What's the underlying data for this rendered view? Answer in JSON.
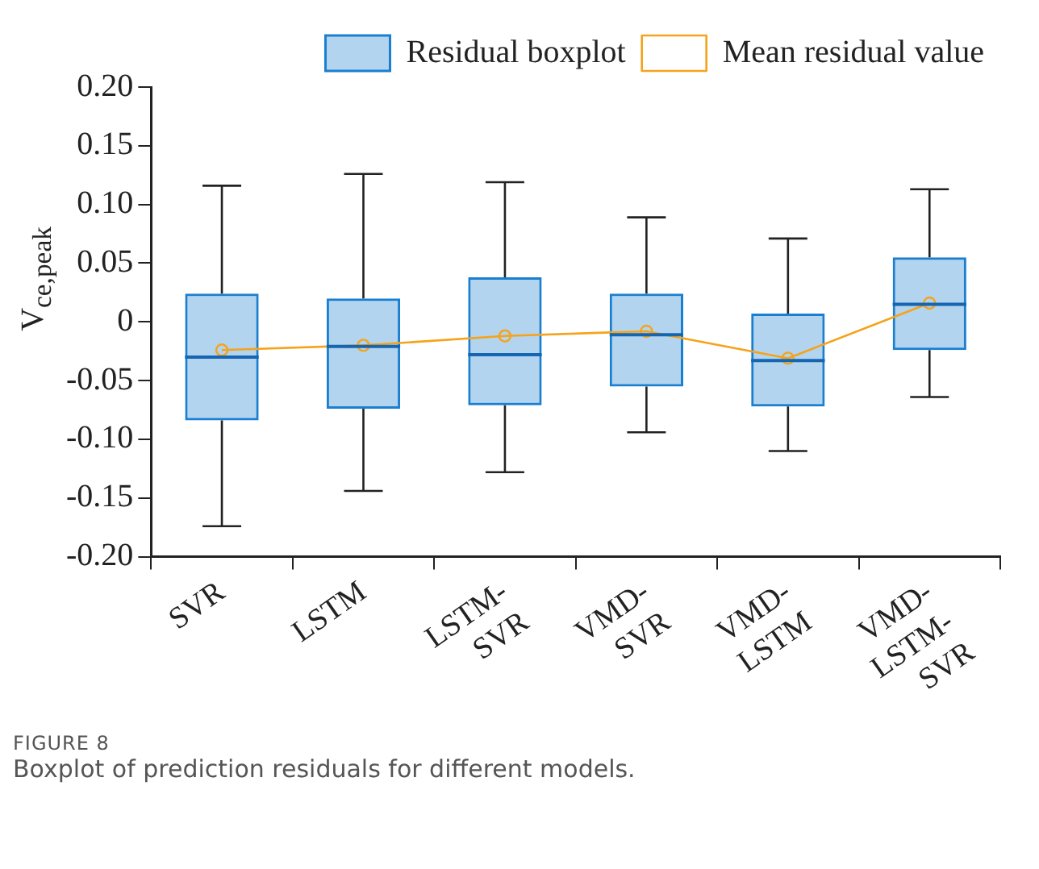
{
  "chart_data": {
    "type": "box",
    "ylabel": "V$_{ce,peak}$",
    "categories": [
      "SVR",
      "LSTM",
      "LSTM-SVR",
      "VMD-SVR",
      "VMD-LSTM",
      "VMD-LSTM-SVR"
    ],
    "series": [
      {
        "name": "Residual boxplot",
        "type": "box",
        "color": "#1a7fd0",
        "boxes": [
          {
            "low": -0.174,
            "q1": -0.084,
            "median": -0.03,
            "q3": 0.024,
            "high": 0.116
          },
          {
            "low": -0.144,
            "q1": -0.074,
            "median": -0.021,
            "q3": 0.02,
            "high": 0.126
          },
          {
            "low": -0.128,
            "q1": -0.071,
            "median": -0.028,
            "q3": 0.038,
            "high": 0.119
          },
          {
            "low": -0.094,
            "q1": -0.055,
            "median": -0.011,
            "q3": 0.024,
            "high": 0.089
          },
          {
            "low": -0.11,
            "q1": -0.072,
            "median": -0.033,
            "q3": 0.007,
            "high": 0.071
          },
          {
            "low": -0.064,
            "q1": -0.024,
            "median": 0.015,
            "q3": 0.055,
            "high": 0.113
          }
        ]
      },
      {
        "name": "Mean residual value",
        "type": "line",
        "color": "#f5a31a",
        "marker": "circle",
        "values": [
          -0.024,
          -0.02,
          -0.012,
          -0.008,
          -0.031,
          0.016
        ]
      }
    ],
    "ylim": [
      -0.2,
      0.2
    ],
    "yticks": [
      {
        "value": -0.2,
        "label": "-0.20"
      },
      {
        "value": -0.15,
        "label": "-0.15"
      },
      {
        "value": -0.1,
        "label": "-0.10"
      },
      {
        "value": -0.05,
        "label": "-0.05"
      },
      0,
      {
        "value": 0.05,
        "label": "0.05"
      },
      {
        "value": 0.1,
        "label": "0.10"
      },
      {
        "value": 0.15,
        "label": "0.15"
      },
      {
        "value": 0.2,
        "label": "0.20"
      }
    ],
    "grid": false,
    "legend": "top right",
    "annotations": [
      "FIGURE 8",
      "Boxplot of prediction residuals for different models."
    ]
  }
}
